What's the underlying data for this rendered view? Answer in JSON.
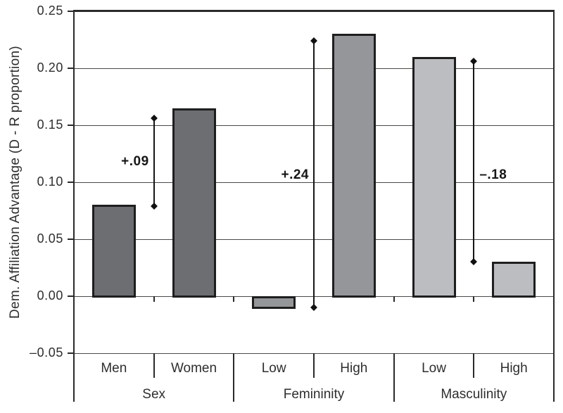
{
  "chart_data": {
    "type": "bar",
    "title": "",
    "ylabel": "Dem. Affiliation Advantage (D - R proportion)",
    "ylim": [
      -0.05,
      0.25
    ],
    "grid": true,
    "legend": "none",
    "y_ticks": [
      {
        "label": "0.25",
        "value": 0.25
      },
      {
        "label": "0.20",
        "value": 0.2
      },
      {
        "label": "0.15",
        "value": 0.15
      },
      {
        "label": "0.10",
        "value": 0.1
      },
      {
        "label": "0.05",
        "value": 0.05
      },
      {
        "label": "0.00",
        "value": 0.0
      },
      {
        "label": "–0.05",
        "value": -0.05
      }
    ],
    "groups": [
      {
        "label": "Sex",
        "bar_color": "#6c6e71",
        "bars": [
          {
            "label": "Men",
            "value": 0.08
          },
          {
            "label": "Women",
            "value": 0.165
          }
        ],
        "annotation": {
          "text": "+.09",
          "low": 0.079,
          "high": 0.156,
          "label_value": 0.118,
          "label_side": "left"
        }
      },
      {
        "label": "Femininity",
        "bar_color": "#949699",
        "bars": [
          {
            "label": "Low",
            "value": -0.01
          },
          {
            "label": "High",
            "value": 0.23
          }
        ],
        "annotation": {
          "text": "+.24",
          "low": -0.01,
          "high": 0.224,
          "label_value": 0.106,
          "label_side": "left"
        }
      },
      {
        "label": "Masculinity",
        "bar_color": "#bbbdc0",
        "bars": [
          {
            "label": "Low",
            "value": 0.21
          },
          {
            "label": "High",
            "value": 0.03
          }
        ],
        "annotation": {
          "text": "–.18",
          "low": 0.03,
          "high": 0.206,
          "label_value": 0.106,
          "label_side": "right"
        }
      }
    ]
  }
}
